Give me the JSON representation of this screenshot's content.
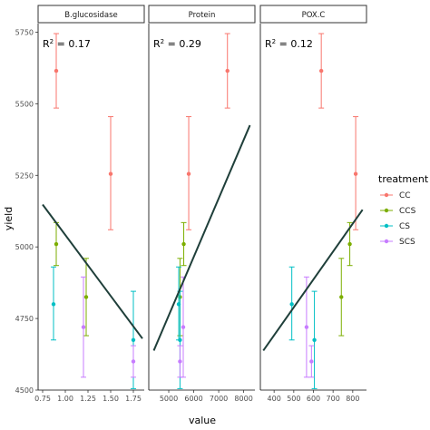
{
  "chart_data": {
    "type": "scatter",
    "layout": "faceted",
    "xlabel": "value",
    "ylabel": "yield",
    "ylim": [
      4500,
      5780
    ],
    "yticks": [
      4500,
      4750,
      5000,
      5250,
      5500,
      5750
    ],
    "legend": {
      "title": "treatment",
      "placement": "right",
      "entries": [
        {
          "name": "CC",
          "color": "#F8766D"
        },
        {
          "name": "CCS",
          "color": "#7CAE00"
        },
        {
          "name": "CS",
          "color": "#00BFC4"
        },
        {
          "name": "SCS",
          "color": "#C77CFF"
        }
      ]
    },
    "regression_line_color": "#1f3f3a",
    "panels": [
      {
        "strip": "B.glucosidase",
        "r2_label": "= 0.17",
        "xlim": [
          0.7,
          1.87
        ],
        "xticks": [
          0.75,
          1.0,
          1.25,
          1.5,
          1.75
        ],
        "xticklabels": [
          "0.75",
          "1.00",
          "1.25",
          "1.50",
          "1.75"
        ],
        "points": [
          {
            "treatment": "CC",
            "x": 0.9,
            "y": 5615,
            "ymin": 5485,
            "ymax": 5745
          },
          {
            "treatment": "CC",
            "x": 1.5,
            "y": 5255,
            "ymin": 5060,
            "ymax": 5455
          },
          {
            "treatment": "CCS",
            "x": 0.9,
            "y": 5010,
            "ymin": 4935,
            "ymax": 5085
          },
          {
            "treatment": "CCS",
            "x": 1.23,
            "y": 4825,
            "ymin": 4690,
            "ymax": 4960
          },
          {
            "treatment": "CS",
            "x": 0.87,
            "y": 4800,
            "ymin": 4675,
            "ymax": 4930
          },
          {
            "treatment": "CS",
            "x": 1.75,
            "y": 4675,
            "ymin": 4505,
            "ymax": 4845
          },
          {
            "treatment": "SCS",
            "x": 1.2,
            "y": 4720,
            "ymin": 4545,
            "ymax": 4895
          },
          {
            "treatment": "SCS",
            "x": 1.75,
            "y": 4600,
            "ymin": 4545,
            "ymax": 4655
          }
        ],
        "fit": {
          "x": [
            0.75,
            1.85
          ],
          "y": [
            5148,
            4680
          ]
        }
      },
      {
        "strip": "Protein",
        "r2_label": "= 0.29",
        "xlim": [
          4200,
          8450
        ],
        "xticks": [
          5000,
          6000,
          7000,
          8000
        ],
        "xticklabels": [
          "5000",
          "6000",
          "7000",
          "8000"
        ],
        "points": [
          {
            "treatment": "CC",
            "x": 7350,
            "y": 5615,
            "ymin": 5485,
            "ymax": 5745
          },
          {
            "treatment": "CC",
            "x": 5800,
            "y": 5255,
            "ymin": 5060,
            "ymax": 5455
          },
          {
            "treatment": "CCS",
            "x": 5600,
            "y": 5010,
            "ymin": 4935,
            "ymax": 5085
          },
          {
            "treatment": "CCS",
            "x": 5450,
            "y": 4825,
            "ymin": 4690,
            "ymax": 4960
          },
          {
            "treatment": "CS",
            "x": 5400,
            "y": 4800,
            "ymin": 4675,
            "ymax": 4930
          },
          {
            "treatment": "CS",
            "x": 5450,
            "y": 4675,
            "ymin": 4505,
            "ymax": 4845
          },
          {
            "treatment": "SCS",
            "x": 5580,
            "y": 4720,
            "ymin": 4545,
            "ymax": 4895
          },
          {
            "treatment": "SCS",
            "x": 5450,
            "y": 4600,
            "ymin": 4545,
            "ymax": 4655
          }
        ],
        "fit": {
          "x": [
            4400,
            8250
          ],
          "y": [
            4638,
            5425
          ]
        }
      },
      {
        "strip": "POX.C",
        "r2_label": "= 0.12",
        "xlim": [
          330,
          870
        ],
        "xticks": [
          400,
          500,
          600,
          700,
          800
        ],
        "xticklabels": [
          "400",
          "500",
          "600",
          "700",
          "800"
        ],
        "points": [
          {
            "treatment": "CC",
            "x": 640,
            "y": 5615,
            "ymin": 5485,
            "ymax": 5745
          },
          {
            "treatment": "CC",
            "x": 815,
            "y": 5255,
            "ymin": 5060,
            "ymax": 5455
          },
          {
            "treatment": "CCS",
            "x": 785,
            "y": 5010,
            "ymin": 4935,
            "ymax": 5085
          },
          {
            "treatment": "CCS",
            "x": 742,
            "y": 4825,
            "ymin": 4690,
            "ymax": 4960
          },
          {
            "treatment": "CS",
            "x": 490,
            "y": 4800,
            "ymin": 4675,
            "ymax": 4930
          },
          {
            "treatment": "CS",
            "x": 605,
            "y": 4675,
            "ymin": 4505,
            "ymax": 4845
          },
          {
            "treatment": "SCS",
            "x": 565,
            "y": 4720,
            "ymin": 4545,
            "ymax": 4895
          },
          {
            "treatment": "SCS",
            "x": 590,
            "y": 4600,
            "ymin": 4545,
            "ymax": 4655
          }
        ],
        "fit": {
          "x": [
            345,
            850
          ],
          "y": [
            4638,
            5130
          ]
        }
      }
    ]
  }
}
